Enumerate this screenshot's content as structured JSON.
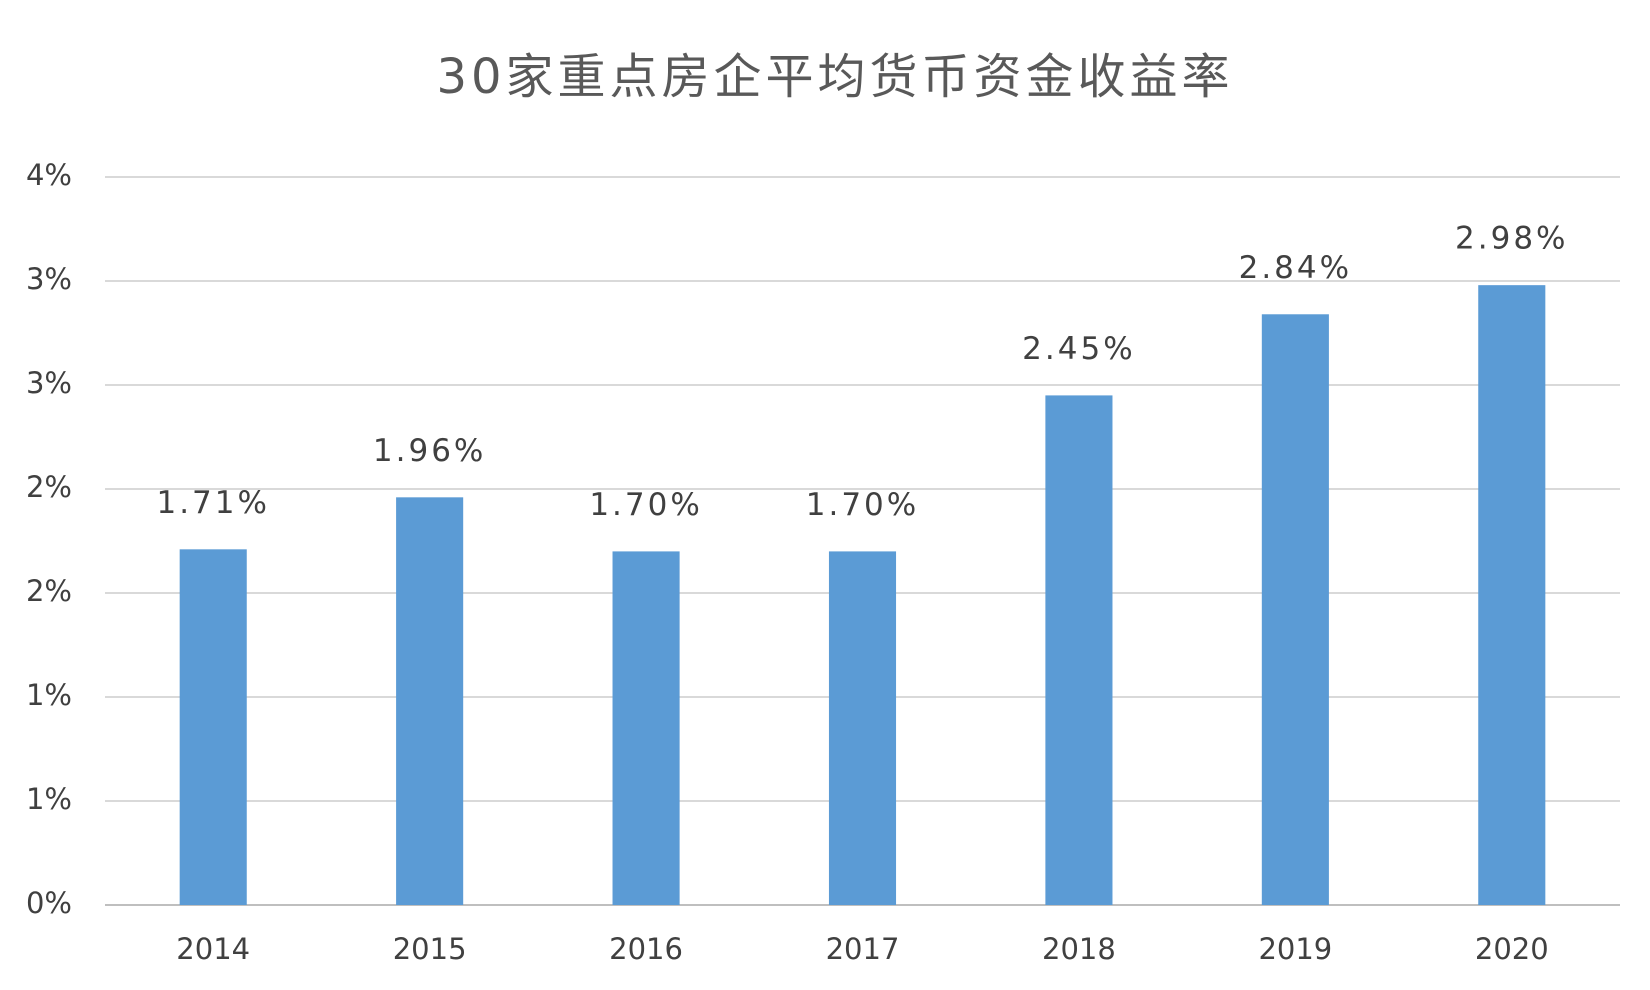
{
  "chart_data": {
    "type": "bar",
    "title": "30家重点房企平均货币资金收益率",
    "categories": [
      "2014",
      "2015",
      "2016",
      "2017",
      "2018",
      "2019",
      "2020"
    ],
    "values": [
      1.71,
      1.96,
      1.7,
      1.7,
      2.45,
      2.84,
      2.98
    ],
    "value_labels": [
      "1.71%",
      "1.96%",
      "1.70%",
      "1.70%",
      "2.45%",
      "2.84%",
      "2.98%"
    ],
    "color": "#5b9bd5",
    "ylim": [
      0,
      3.5
    ],
    "yticks": [
      {
        "value": 0,
        "label": "0%"
      },
      {
        "value": 0.5,
        "label": "1%"
      },
      {
        "value": 1,
        "label": "1%"
      },
      {
        "value": 1.5,
        "label": "2%"
      },
      {
        "value": 2,
        "label": "2%"
      },
      {
        "value": 2.5,
        "label": "3%"
      },
      {
        "value": 3,
        "label": "3%"
      },
      {
        "value": 3.5,
        "label": "4%"
      }
    ],
    "grid": true
  }
}
